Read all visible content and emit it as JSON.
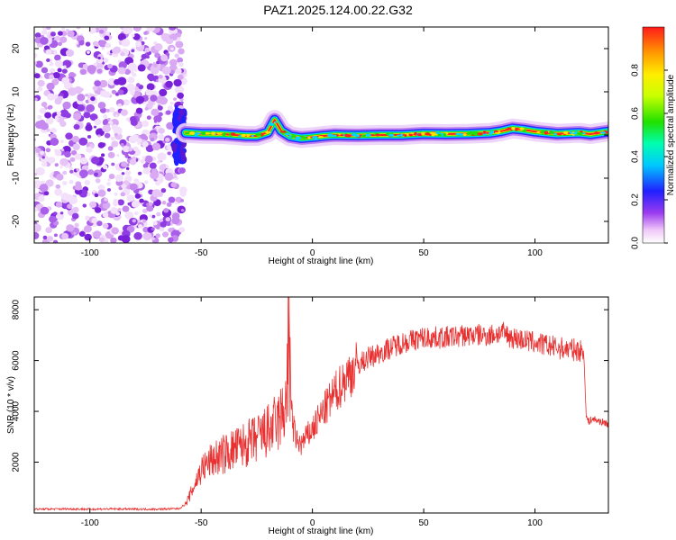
{
  "chart_data": [
    {
      "type": "heatmap",
      "title": "PAZ1.2025.124.00.22.G32",
      "xlabel": "Height of straight line (km)",
      "ylabel": "Frequency (Hz)",
      "xlim": [
        -125,
        133
      ],
      "ylim": [
        -25,
        25
      ],
      "xticks": [
        -100,
        -50,
        0,
        50,
        100
      ],
      "xtick_labels": [
        "-100",
        "-50",
        "0",
        "50",
        "100"
      ],
      "yticks": [
        -20,
        -10,
        0,
        10,
        20
      ],
      "ytick_labels": [
        "-20",
        "-10",
        "0",
        "10",
        "20"
      ],
      "noise_region_x": [
        -125,
        -60
      ],
      "ridge": {
        "x": [
          -57,
          -50,
          -40,
          -30,
          -25,
          -20,
          -17,
          -14,
          -10,
          -5,
          0,
          5,
          10,
          20,
          30,
          40,
          50,
          60,
          70,
          80,
          85,
          90,
          95,
          100,
          110,
          120,
          125,
          133
        ],
        "frequency": [
          0.5,
          0.3,
          0.2,
          -0.2,
          -0.2,
          0.6,
          3.5,
          1.0,
          -0.3,
          -0.7,
          -0.5,
          -0.2,
          0.0,
          -0.1,
          0.0,
          0.0,
          0.3,
          0.2,
          0.3,
          0.5,
          0.9,
          1.5,
          1.2,
          0.8,
          0.3,
          0.5,
          0.2,
          0.8
        ],
        "amplitude_level": "high (0.8 to 1.0)"
      },
      "colorbar": {
        "label": "Normalized spectral amplitude",
        "range": [
          0.0,
          1.0
        ],
        "ticks": [
          0.0,
          0.2,
          0.4,
          0.6,
          0.8
        ],
        "tick_labels": [
          "0.0",
          "0.2",
          "0.4",
          "0.6",
          "0.8"
        ]
      }
    },
    {
      "type": "line",
      "title": "",
      "xlabel": "Height of straight line (km)",
      "ylabel": "SNR (10 * v/v)",
      "xlim": [
        -125,
        133
      ],
      "ylim": [
        0,
        8500
      ],
      "xticks": [
        -100,
        -50,
        0,
        50,
        100
      ],
      "xtick_labels": [
        "-100",
        "-50",
        "0",
        "50",
        "100"
      ],
      "yticks": [
        2000,
        4000,
        6000,
        8000
      ],
      "ytick_labels": [
        "2000",
        "4000",
        "6000",
        "8000"
      ],
      "series": [
        {
          "name": "SNR",
          "color": "#e83030",
          "x": [
            -125,
            -110,
            -100,
            -90,
            -80,
            -70,
            -60,
            -57,
            -55,
            -52,
            -50,
            -45,
            -40,
            -35,
            -30,
            -25,
            -20,
            -15,
            -12,
            -11,
            -10.5,
            -10,
            -9,
            -7,
            -5,
            0,
            5,
            10,
            15,
            20,
            25,
            30,
            40,
            50,
            60,
            70,
            80,
            85,
            90,
            100,
            110,
            120,
            122,
            123,
            124,
            126,
            133
          ],
          "values": [
            150,
            160,
            150,
            160,
            150,
            150,
            170,
            350,
            700,
            1300,
            1700,
            2100,
            2300,
            2500,
            2700,
            2900,
            3200,
            3600,
            4200,
            6000,
            8500,
            6000,
            3500,
            2800,
            2700,
            3300,
            4000,
            4700,
            5300,
            5800,
            6100,
            6300,
            6700,
            6900,
            6900,
            7000,
            7000,
            7100,
            6900,
            6700,
            6500,
            6400,
            6300,
            3800,
            3600,
            3700,
            3500
          ]
        }
      ]
    }
  ]
}
